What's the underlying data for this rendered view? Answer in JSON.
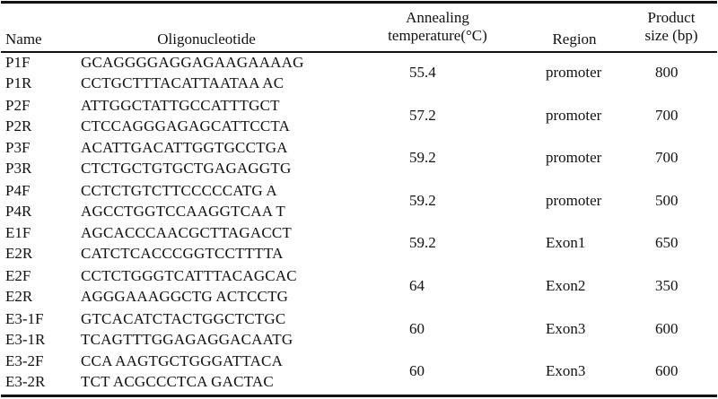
{
  "headers": {
    "name": "Name",
    "oligo": "Oligonucleotide",
    "temp_line1": "Annealing",
    "temp_line2": "temperature(°C)",
    "region": "Region",
    "size_line1": "Product",
    "size_line2": "size (bp)"
  },
  "rows": [
    {
      "f_name": "P1F",
      "f_seq": "GCAGGGGAGGAGAAGAAAAG",
      "r_name": "P1R",
      "r_seq": "CCTGCTTTACATTAATAA AC",
      "temp": "55.4",
      "region": "promoter",
      "size": "800"
    },
    {
      "f_name": "P2F",
      "f_seq": "ATTGGCTATTGCCATTTGCT",
      "r_name": "P2R",
      "r_seq": "CTCCAGGGAGAGCATTCCTA",
      "temp": "57.2",
      "region": "promoter",
      "size": "700"
    },
    {
      "f_name": "P3F",
      "f_seq": "ACATTGACATTGGTGCCTGA",
      "r_name": "P3R",
      "r_seq": "CTCTGCTGTGCTGAGAGGTG",
      "temp": "59.2",
      "region": "promoter",
      "size": "700"
    },
    {
      "f_name": "P4F",
      "f_seq": "CCTCTGTCTTCCCCCATG A",
      "r_name": "P4R",
      "r_seq": "AGCCTGGTCCAAGGTCAA T",
      "temp": "59.2",
      "region": "promoter",
      "size": "500"
    },
    {
      "f_name": "E1F",
      "f_seq": "AGCACCCAACGCTTAGACCT",
      "r_name": "E2R",
      "r_seq": "CATCTCACCCGGTCCTTTTA",
      "temp": "59.2",
      "region": "Exon1",
      "size": "650"
    },
    {
      "f_name": "E2F",
      "f_seq": "CCTCTGGGTCATTTACAGCAC",
      "r_name": "E2R",
      "r_seq": "AGGGAAAGGCTG ACTCCTG",
      "temp": "64",
      "region": "Exon2",
      "size": "350"
    },
    {
      "f_name": "E3-1F",
      "f_seq": "GTCACATCTACTGGCTCTGC",
      "r_name": "E3-1R",
      "r_seq": "TCAGTTTGGAGAGGACAATG",
      "temp": "60",
      "region": "Exon3",
      "size": "600"
    },
    {
      "f_name": "E3-2F",
      "f_seq": "CCA AAGTGCTGGGATTACA",
      "r_name": "E3-2R",
      "r_seq": "TCT ACGCCCTCA GACTAC",
      "temp": "60",
      "region": "Exon3",
      "size": "600"
    }
  ]
}
